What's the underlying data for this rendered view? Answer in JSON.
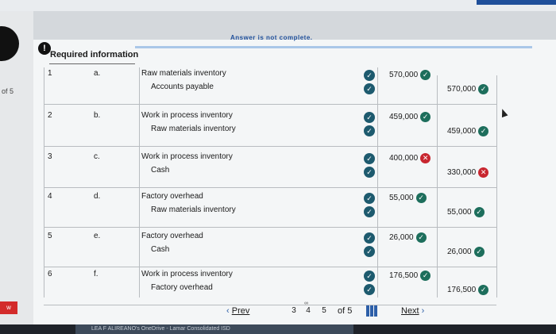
{
  "banner": "Answer is not complete.",
  "side_text": "of 5",
  "side_badge": "w",
  "required_info": {
    "icon": "!",
    "title": "Required information"
  },
  "rows": [
    {
      "num": "1",
      "letter": "a.",
      "debit_account": "Raw materials inventory",
      "credit_account": "Accounts payable",
      "debit_amount": "570,000",
      "debit_status": "correct",
      "credit_amount": "570,000",
      "credit_status": "correct"
    },
    {
      "num": "2",
      "letter": "b.",
      "debit_account": "Work in process inventory",
      "credit_account": "Raw materials inventory",
      "debit_amount": "459,000",
      "debit_status": "correct",
      "credit_amount": "459,000",
      "credit_status": "correct"
    },
    {
      "num": "3",
      "letter": "c.",
      "debit_account": "Work in process inventory",
      "credit_account": "Cash",
      "debit_amount": "400,000",
      "debit_status": "incorrect",
      "credit_amount": "330,000",
      "credit_status": "incorrect"
    },
    {
      "num": "4",
      "letter": "d.",
      "debit_account": "Factory overhead",
      "credit_account": "Raw materials inventory",
      "debit_amount": "55,000",
      "debit_status": "correct",
      "credit_amount": "55,000",
      "credit_status": "correct"
    },
    {
      "num": "5",
      "letter": "e.",
      "debit_account": "Factory overhead",
      "credit_account": "Cash",
      "debit_amount": "26,000",
      "debit_status": "correct",
      "credit_amount": "26,000",
      "credit_status": "correct"
    },
    {
      "num": "6",
      "letter": "f.",
      "debit_account": "Work in process inventory",
      "credit_account": "Factory overhead",
      "debit_amount": "176,500",
      "debit_status": "correct",
      "credit_amount": "176,500",
      "credit_status": "correct"
    }
  ],
  "pagination": {
    "prev": "Prev",
    "pages": [
      "3",
      "4",
      "5"
    ],
    "current": "4",
    "of": "of 5",
    "next": "Next"
  },
  "taskbar": "LEA F  ALIREANO's OneDrive - Lamar Consolidated ISD"
}
